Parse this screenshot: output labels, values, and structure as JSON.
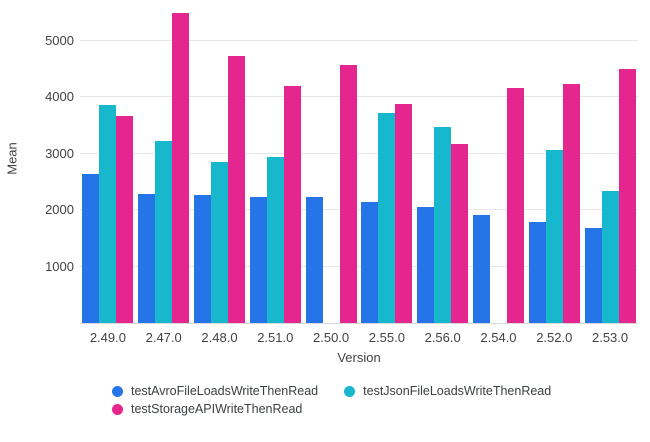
{
  "chart_data": {
    "type": "bar",
    "title": "",
    "xlabel": "Version",
    "ylabel": "Mean",
    "categories": [
      "2.49.0",
      "2.47.0",
      "2.48.0",
      "2.51.0",
      "2.50.0",
      "2.55.0",
      "2.56.0",
      "2.54.0",
      "2.52.0",
      "2.53.0"
    ],
    "series": [
      {
        "name": "testAvroFileLoadsWriteThenRead",
        "color": "#2575e8",
        "values": [
          2650,
          2290,
          2270,
          2230,
          2230,
          2140,
          2050,
          1910,
          1790,
          1690
        ]
      },
      {
        "name": "testJsonFileLoadsWriteThenRead",
        "color": "#17b8ce",
        "values": [
          3860,
          3230,
          2860,
          2950,
          null,
          3720,
          3470,
          null,
          3060,
          2340
        ]
      },
      {
        "name": "testStorageAPIWriteThenRead",
        "color": "#e6268f",
        "values": [
          3670,
          5500,
          4740,
          4210,
          4570,
          3890,
          3170,
          4160,
          4230,
          4500
        ]
      }
    ],
    "yticks": [
      1000,
      2000,
      3000,
      4000,
      5000
    ],
    "ylim": [
      0,
      5585
    ],
    "grid": true,
    "legend_position": "bottom"
  },
  "colors": {
    "background": "#ffffff",
    "gridline": "#e7e7e7",
    "axis_line": "#d9d9d9",
    "tick_text": "#424242",
    "legend_text": "#3c4043"
  }
}
